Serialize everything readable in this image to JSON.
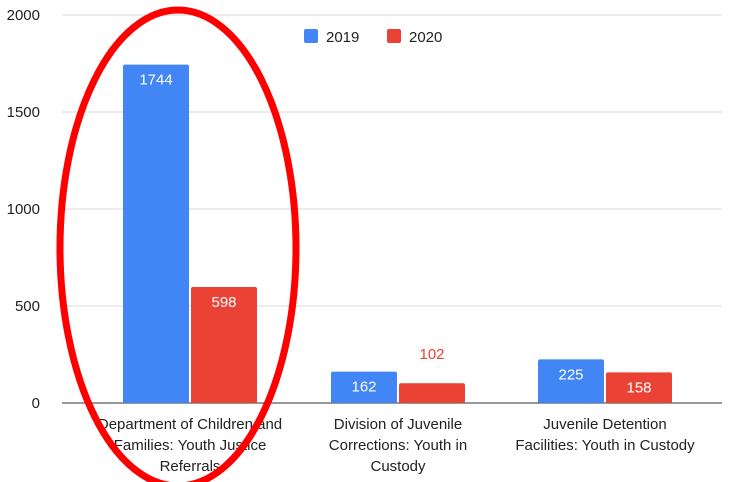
{
  "chart_data": {
    "type": "bar",
    "categories": [
      [
        "Department of Children and",
        "Families: Youth Justice",
        "Referrals"
      ],
      [
        "Division of Juvenile",
        "Corrections: Youth in",
        "Custody"
      ],
      [
        "Juvenile Detention",
        "Facilities: Youth in Custody"
      ]
    ],
    "series": [
      {
        "name": "2019",
        "color": "#4285f4",
        "values": [
          1744,
          162,
          225
        ]
      },
      {
        "name": "2020",
        "color": "#ea4335",
        "values": [
          598,
          102,
          158
        ]
      }
    ],
    "ylim": [
      0,
      2000
    ],
    "yticks": [
      "0",
      "500",
      "1000",
      "1500",
      "2000"
    ],
    "grid": true,
    "legend_position": "top",
    "annotation": {
      "type": "ellipse",
      "color": "#ff0000",
      "target_category": 0
    }
  }
}
